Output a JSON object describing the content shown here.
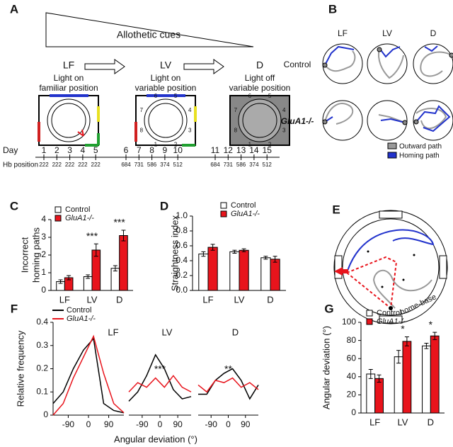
{
  "panel_labels": [
    "A",
    "B",
    "C",
    "D",
    "E",
    "F",
    "G"
  ],
  "panel_a": {
    "wedge_label": "Allothetic cues",
    "phases": [
      {
        "name": "LF",
        "caption": [
          "Light on",
          "familiar position"
        ]
      },
      {
        "name": "LV",
        "caption": [
          "Light on",
          "variable position"
        ]
      },
      {
        "name": "D",
        "caption": [
          "Light off",
          "variable position"
        ]
      }
    ],
    "maze_numbers": [
      1,
      2,
      3,
      4,
      5,
      6,
      7,
      8
    ],
    "day_label": "Day",
    "days": [
      1,
      2,
      3,
      4,
      5,
      6,
      7,
      8,
      9,
      10,
      11,
      12,
      13,
      14,
      15
    ],
    "hb_label": "Hb position",
    "hb_positions": [
      "222",
      "222",
      "222",
      "222",
      "222",
      "684",
      "731",
      "586",
      "374",
      "512",
      "684",
      "731",
      "586",
      "374",
      "512"
    ]
  },
  "panel_b": {
    "columns": [
      "LF",
      "LV",
      "D"
    ],
    "rows": [
      "Control",
      "GluA1-/-"
    ],
    "legend": [
      "Outward path",
      "Homing path"
    ]
  },
  "panel_e": {
    "label": "home-base"
  },
  "chart_data": [
    {
      "type": "bar",
      "ylabel": [
        "Incorrect",
        "homing paths"
      ],
      "categories": [
        "LF",
        "LV",
        "D"
      ],
      "series": [
        {
          "name": "Control",
          "color": "#ffffff",
          "values": [
            0.5,
            0.78,
            1.25
          ],
          "errors": [
            0.1,
            0.1,
            0.15
          ]
        },
        {
          "name": "GluA1-/-",
          "color": "#e8141c",
          "values": [
            0.72,
            2.28,
            3.1
          ],
          "errors": [
            0.12,
            0.35,
            0.3
          ]
        }
      ],
      "ylim": [
        0,
        4
      ],
      "yticks": [
        0,
        1,
        2,
        3,
        4
      ],
      "annotations": [
        {
          "text": "***",
          "x": "LV"
        },
        {
          "text": "***",
          "x": "D"
        }
      ]
    },
    {
      "type": "bar",
      "ylabel": [
        "Straightness index"
      ],
      "categories": [
        "LF",
        "LV",
        "D"
      ],
      "series": [
        {
          "name": "Control",
          "color": "#ffffff",
          "values": [
            0.49,
            0.52,
            0.44
          ],
          "errors": [
            0.03,
            0.02,
            0.02
          ]
        },
        {
          "name": "GluA1-/-",
          "color": "#e8141c",
          "values": [
            0.58,
            0.54,
            0.42
          ],
          "errors": [
            0.04,
            0.02,
            0.04
          ]
        }
      ],
      "ylim": [
        0,
        1
      ],
      "yticks": [
        {
          "value": 0,
          "label": "0.0"
        },
        0.2,
        0.4,
        0.6,
        0.8,
        {
          "value": 1,
          "label": "1.0"
        }
      ]
    },
    {
      "type": "line",
      "title": "LF",
      "ylabel": [
        "Relative frequency"
      ],
      "x": [
        -157.5,
        -112.5,
        -67.5,
        -22.5,
        22.5,
        67.5,
        112.5,
        157.5
      ],
      "series": [
        {
          "name": "Control",
          "color": "#000000",
          "values": [
            0.05,
            0.1,
            0.2,
            0.28,
            0.33,
            0.05,
            0.02,
            0.01
          ]
        },
        {
          "name": "GluA1-/-",
          "color": "#e8141c",
          "values": [
            0.0,
            0.05,
            0.16,
            0.25,
            0.34,
            0.18,
            0.05,
            0.01
          ]
        }
      ],
      "xlim": [
        -157.5,
        157.5
      ],
      "xticks": [
        -90,
        0,
        90
      ],
      "ylim": [
        0,
        0.4
      ],
      "yticks": [
        0,
        0.1,
        0.2,
        0.3,
        0.4
      ]
    },
    {
      "type": "line",
      "title": "LV",
      "xlabel": "Angular deviation (°)",
      "x": [
        -157.5,
        -112.5,
        -67.5,
        -22.5,
        22.5,
        67.5,
        112.5,
        157.5
      ],
      "series": [
        {
          "name": "Control",
          "color": "#000000",
          "values": [
            0.06,
            0.1,
            0.17,
            0.26,
            0.2,
            0.11,
            0.07,
            0.08
          ]
        },
        {
          "name": "GluA1-/-",
          "color": "#e8141c",
          "values": [
            0.1,
            0.14,
            0.12,
            0.16,
            0.12,
            0.17,
            0.12,
            0.1
          ]
        }
      ],
      "xlim": [
        -157.5,
        157.5
      ],
      "xticks": [
        -90,
        0,
        90
      ],
      "ylim": [
        0,
        0.4
      ],
      "annotations": [
        {
          "text": "***",
          "x": 0
        }
      ]
    },
    {
      "type": "line",
      "title": "D",
      "x": [
        -157.5,
        -112.5,
        -67.5,
        -22.5,
        22.5,
        67.5,
        112.5,
        157.5
      ],
      "series": [
        {
          "name": "Control",
          "color": "#000000",
          "values": [
            0.09,
            0.09,
            0.15,
            0.18,
            0.2,
            0.15,
            0.07,
            0.13
          ]
        },
        {
          "name": "GluA1-/-",
          "color": "#e8141c",
          "values": [
            0.13,
            0.1,
            0.15,
            0.14,
            0.16,
            0.12,
            0.14,
            0.11
          ]
        }
      ],
      "xlim": [
        -157.5,
        157.5
      ],
      "xticks": [
        -90,
        0,
        90
      ],
      "ylim": [
        0,
        0.4
      ],
      "annotations": [
        {
          "text": "**",
          "x": 0
        }
      ]
    },
    {
      "type": "bar",
      "ylabel": [
        "Angular deviation (°)"
      ],
      "categories": [
        "LF",
        "LV",
        "D"
      ],
      "series": [
        {
          "name": "Control",
          "color": "#ffffff",
          "values": [
            43,
            62,
            74
          ],
          "errors": [
            5,
            7,
            3
          ]
        },
        {
          "name": "GluA1-/-",
          "color": "#e8141c",
          "values": [
            38,
            79,
            85
          ],
          "errors": [
            4,
            5,
            4
          ]
        }
      ],
      "ylim": [
        0,
        100
      ],
      "yticks": [
        0,
        20,
        40,
        60,
        80,
        100
      ],
      "annotations": [
        {
          "text": "*",
          "x": "LV"
        },
        {
          "text": "*",
          "x": "D"
        }
      ]
    }
  ]
}
